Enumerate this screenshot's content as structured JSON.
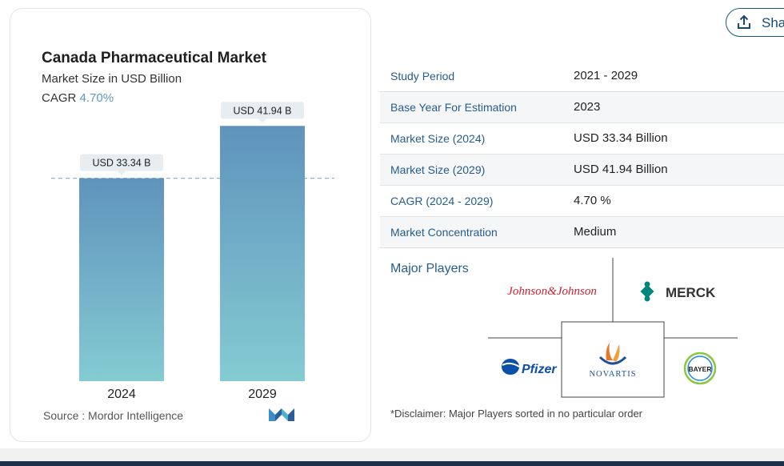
{
  "chart_data": {
    "type": "bar",
    "title": "Canada Pharmaceutical Market",
    "subtitle": "Market Size in USD Billion",
    "cagr_label": "CAGR",
    "cagr_value": "4.70%",
    "categories": [
      "2024",
      "2029"
    ],
    "values": [
      33.34,
      41.94
    ],
    "data_labels": [
      "USD 33.34 B",
      "USD 41.94 B"
    ],
    "ylim": [
      0,
      50
    ],
    "gridlines": false,
    "colors": {
      "bar_top": "#5f93bd",
      "bar_bottom": "#84cbd1",
      "label_bg": "#e7edf1"
    }
  },
  "source": "Source :  Mordor Intelligence",
  "share": {
    "label": "Share",
    "icon": "share-icon"
  },
  "study_table": [
    {
      "key": "Study Period",
      "value": "2021 - 2029"
    },
    {
      "key": "Base Year For Estimation",
      "value": "2023"
    },
    {
      "key": "Market Size (2024)",
      "value": "USD 33.34 Billion"
    },
    {
      "key": "Market Size (2029)",
      "value": "USD 41.94 Billion"
    },
    {
      "key": "CAGR (2024 - 2029)",
      "value": "4.70 %"
    },
    {
      "key": "Market Concentration",
      "value": "Medium"
    }
  ],
  "major_players": {
    "title": "Major Players",
    "logos": [
      "Johnson&Johnson",
      "MERCK",
      "Pfizer",
      "NOVARTIS",
      "BAYER"
    ]
  },
  "disclaimer": "*Disclaimer: Major Players sorted in no particular order"
}
